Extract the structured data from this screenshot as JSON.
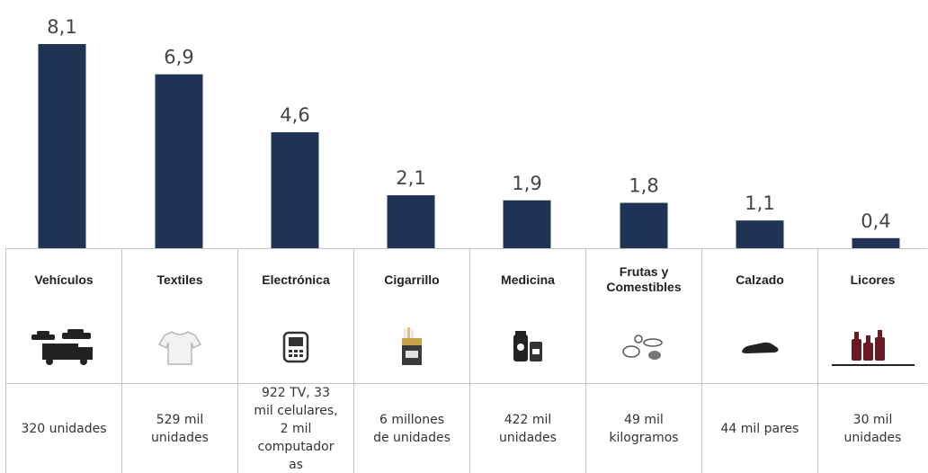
{
  "chart_data": {
    "type": "bar",
    "categories": [
      "Vehículos",
      "Textiles",
      "Electrónica",
      "Cigarrillo",
      "Medicina",
      "Frutas y Comestibles",
      "Calzado",
      "Licores"
    ],
    "values": [
      8.1,
      6.9,
      4.6,
      2.1,
      1.9,
      1.8,
      1.1,
      0.4
    ],
    "value_labels": [
      "8,1",
      "6,9",
      "4,6",
      "2,1",
      "1,9",
      "1,8",
      "1,1",
      "0,4"
    ],
    "ylim": [
      0,
      8.1
    ],
    "bar_color": "#1f3454",
    "grid": false,
    "title": "",
    "xlabel": "",
    "ylabel": ""
  },
  "table": {
    "headers": [
      [
        "Vehículos"
      ],
      [
        "Textiles"
      ],
      [
        "Electrónica"
      ],
      [
        "Cigarrillo"
      ],
      [
        "Medicina"
      ],
      [
        "Frutas y",
        "Comestibles"
      ],
      [
        "Calzado"
      ],
      [
        "Licores"
      ]
    ],
    "icons": [
      "vehicles-icon",
      "shirt-icon",
      "electronics-icon",
      "cigarette-pack-icon",
      "medicine-icon",
      "food-icon",
      "shoe-icon",
      "liquor-bottles-icon"
    ],
    "descriptions": [
      [
        "320 unidades"
      ],
      [
        "529 mil",
        "unidades"
      ],
      [
        "922 TV,  33",
        "mil celulares,",
        "2 mil",
        "computador",
        "as"
      ],
      [
        "6 millones",
        "de unidades"
      ],
      [
        "422 mil",
        "unidades"
      ],
      [
        "49 mil",
        "kilogramos"
      ],
      [
        "44 mil pares"
      ],
      [
        "30 mil",
        "unidades"
      ]
    ]
  }
}
